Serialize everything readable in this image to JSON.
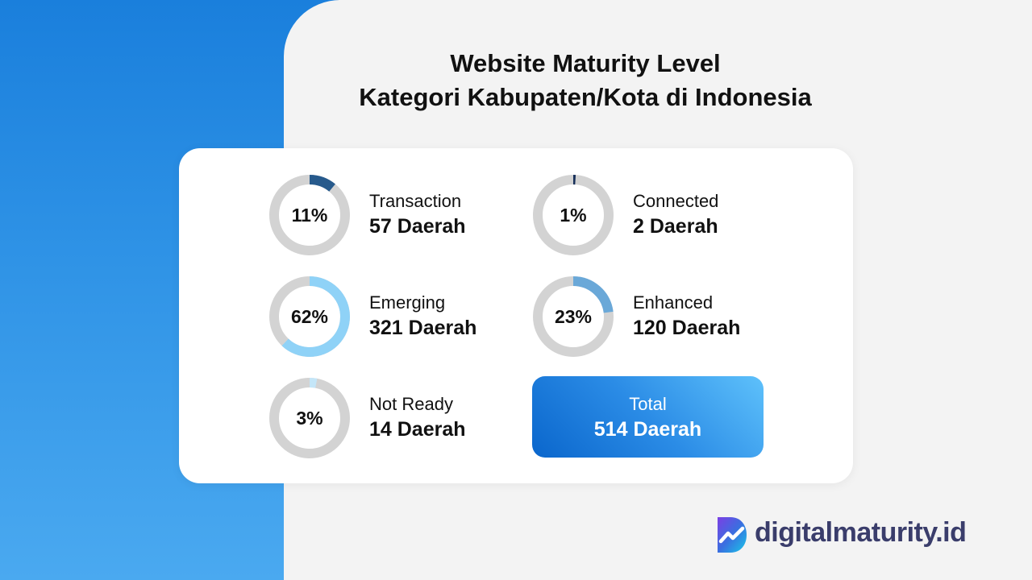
{
  "title": {
    "line1": "Website Maturity Level",
    "line2": "Kategori Kabupaten/Kota di Indonesia"
  },
  "chart_data": {
    "type": "pie",
    "title": "Website Maturity Level Kategori Kabupaten/Kota di Indonesia",
    "items": [
      {
        "label": "Transaction",
        "percent": 11,
        "percent_text": "11%",
        "count_text": "57 Daerah",
        "count": 57,
        "color": "#275a8c"
      },
      {
        "label": "Connected",
        "percent": 1,
        "percent_text": "1%",
        "count_text": "2 Daerah",
        "count": 2,
        "color": "#17305a"
      },
      {
        "label": "Emerging",
        "percent": 62,
        "percent_text": "62%",
        "count_text": "321 Daerah",
        "count": 321,
        "color": "#8fd2f7"
      },
      {
        "label": "Enhanced",
        "percent": 23,
        "percent_text": "23%",
        "count_text": "120 Daerah",
        "count": 120,
        "color": "#6aa8d8"
      },
      {
        "label": "Not Ready",
        "percent": 3,
        "percent_text": "3%",
        "count_text": "14 Daerah",
        "count": 14,
        "color": "#c4e6f8"
      }
    ],
    "track_color": "#d3d3d3",
    "total": {
      "label": "Total",
      "value": "514 Daerah",
      "count": 514
    }
  },
  "brand": {
    "name": "digitalmaturity.id",
    "icon": "brand-d-logo-icon"
  }
}
